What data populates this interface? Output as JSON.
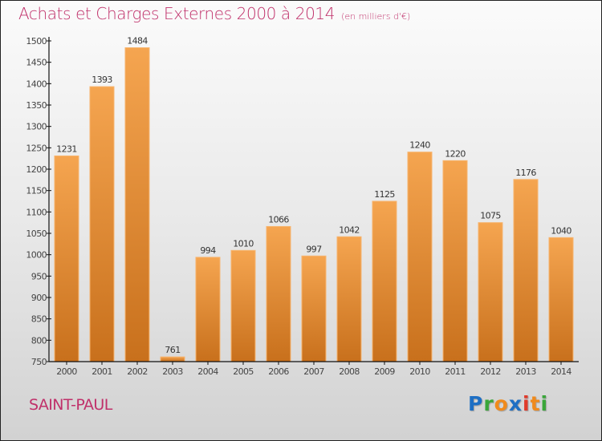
{
  "title": "Achats et Charges Externes 2000 à 2014",
  "subtitle": "(en milliers d'€)",
  "city": "SAINT-PAUL",
  "logo": {
    "letters": [
      "P",
      "r",
      "o",
      "x",
      "i",
      "t",
      "i"
    ],
    "colors": [
      "#1e6fc4",
      "#3aa63a",
      "#f08a1c",
      "#1e6fc4",
      "#e03a2a",
      "#f08a1c",
      "#3aa63a"
    ]
  },
  "colors": {
    "bar_top": "#f5a550",
    "bar_bottom": "#c8701c",
    "title": "#c0306a"
  },
  "chart_data": {
    "type": "bar",
    "title": "Achats et Charges Externes 2000 à 2014 (en milliers d'€)",
    "xlabel": "",
    "ylabel": "",
    "categories": [
      "2000",
      "2001",
      "2002",
      "2003",
      "2004",
      "2005",
      "2006",
      "2007",
      "2008",
      "2009",
      "2010",
      "2011",
      "2012",
      "2013",
      "2014"
    ],
    "values": [
      1231,
      1393,
      1484,
      761,
      994,
      1010,
      1066,
      997,
      1042,
      1125,
      1240,
      1220,
      1075,
      1176,
      1040
    ],
    "ylim": [
      750,
      1500
    ],
    "yticks": [
      750,
      800,
      850,
      900,
      950,
      1000,
      1050,
      1100,
      1150,
      1200,
      1250,
      1300,
      1350,
      1400,
      1450,
      1500
    ],
    "grid": false,
    "legend": "none"
  }
}
